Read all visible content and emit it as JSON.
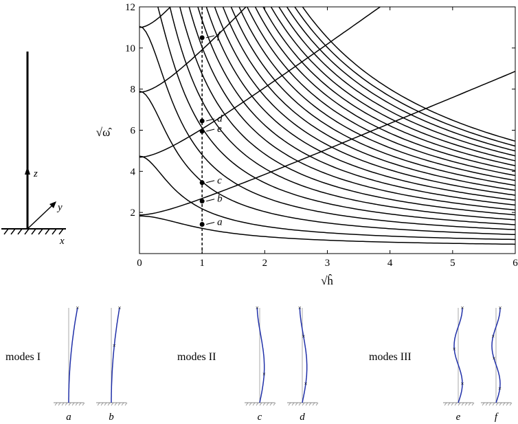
{
  "chart_data": {
    "type": "line",
    "ylabel": "√ω̂",
    "xlabel": "√ĥ",
    "xlim": [
      0,
      6
    ],
    "ylim": [
      0,
      12
    ],
    "x_ticks": [
      "0",
      "1",
      "2",
      "3",
      "4",
      "5",
      "6"
    ],
    "y_ticks": [
      "2",
      "4",
      "6",
      "8",
      "10",
      "12"
    ],
    "grid": false,
    "vertical_marker_x": 1,
    "branch_points_at_zero": [
      1.88,
      4.69,
      7.85,
      11.0
    ],
    "points": [
      {
        "label": "a",
        "x": 1,
        "y": 1.42
      },
      {
        "label": "b",
        "x": 1,
        "y": 2.55
      },
      {
        "label": "c",
        "x": 1,
        "y": 3.45
      },
      {
        "label": "e",
        "x": 1,
        "y": 5.95
      },
      {
        "label": "d",
        "x": 1,
        "y": 6.45
      },
      {
        "label": "f",
        "x": 1,
        "y": 10.5
      }
    ]
  },
  "axes_inset": {
    "z": "z",
    "y": "y",
    "x": "x"
  },
  "mode_groups": [
    {
      "label": "modes I",
      "modes": [
        {
          "label": "a",
          "order": 1,
          "amp": 0.8,
          "marks": [
            1.0
          ]
        },
        {
          "label": "b",
          "order": 1,
          "amp": 0.75,
          "marks": [
            0.6,
            1.0
          ]
        }
      ]
    },
    {
      "label": "modes II",
      "modes": [
        {
          "label": "c",
          "order": 2,
          "amp": 1.0,
          "marks": [
            0.3,
            1.0
          ]
        },
        {
          "label": "d",
          "order": 2,
          "amp": 1.0,
          "marks": [
            0.2,
            0.7,
            1.0
          ]
        }
      ]
    },
    {
      "label": "modes III",
      "modes": [
        {
          "label": "e",
          "order": 3,
          "amp": 1.0,
          "marks": [
            0.2,
            0.57,
            1.0
          ]
        },
        {
          "label": "f",
          "order": 3,
          "amp": 1.0,
          "marks": [
            0.15,
            0.47,
            0.7,
            1.0
          ]
        }
      ]
    }
  ]
}
